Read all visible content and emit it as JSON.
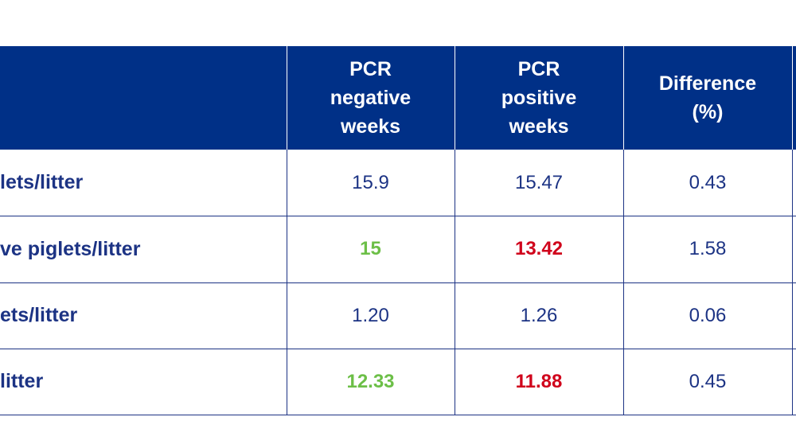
{
  "table": {
    "header": [
      [
        "PCR",
        "negative",
        "weeks"
      ],
      [
        "PCR",
        "positive",
        "weeks"
      ],
      [
        "Difference",
        "(%)"
      ]
    ],
    "rows": [
      {
        "label": "lets/litter",
        "cells": [
          {
            "text": "15.9"
          },
          {
            "text": "15.47"
          },
          {
            "text": "0.43"
          }
        ]
      },
      {
        "label": "ve piglets/litter",
        "cells": [
          {
            "text": "15",
            "color": "#6cbf47"
          },
          {
            "text": "13.42",
            "color": "#d0021b"
          },
          {
            "text": "1.58"
          }
        ]
      },
      {
        "label": "ets/litter",
        "cells": [
          {
            "text": "1.20"
          },
          {
            "text": "1.26"
          },
          {
            "text": "0.06"
          }
        ]
      },
      {
        "label": "litter",
        "cells": [
          {
            "text": "12.33",
            "color": "#6cbf47"
          },
          {
            "text": "11.88",
            "color": "#d0021b"
          },
          {
            "text": "0.45"
          }
        ]
      }
    ]
  }
}
